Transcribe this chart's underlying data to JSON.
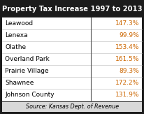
{
  "title": "Property Tax Increase 1997 to 2013",
  "rows": [
    [
      "Leawood",
      "147.3%"
    ],
    [
      "Lenexa",
      "99.9%"
    ],
    [
      "Olathe",
      "153.4%"
    ],
    [
      "Overland Park",
      "161.5%"
    ],
    [
      "Prairie Village",
      "89.3%"
    ],
    [
      "Shawnee",
      "172.2%"
    ],
    [
      "Johnson County",
      "131.9%"
    ]
  ],
  "source": "Source: Kansas Dept. of Revenue",
  "title_bg": "#1c1c1c",
  "title_color": "#ffffff",
  "title_fontsize": 7.2,
  "row_fontsize": 6.5,
  "source_fontsize": 5.8,
  "value_color": "#cc6600",
  "label_color": "#000000",
  "border_color": "#1c1c1c",
  "row_bg_color": "#ffffff",
  "source_bg": "#d8d8d8",
  "divider_color": "#555555",
  "row_line_color": "#bbbbbb"
}
